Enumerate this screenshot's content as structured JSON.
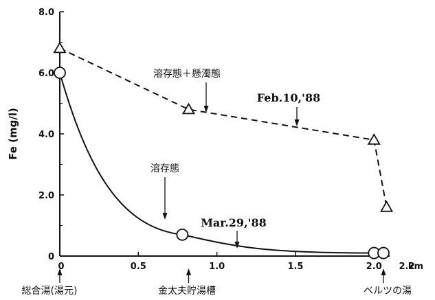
{
  "chart_data": {
    "type": "line",
    "xlabel": "",
    "x_unit": "km",
    "ylabel": "Fe (mg/l)",
    "xlim": [
      0,
      2.2
    ],
    "ylim": [
      0,
      8.0
    ],
    "x_ticks": [
      {
        "value": 0,
        "label": "0"
      },
      {
        "value": 0.5,
        "label": "0.5"
      },
      {
        "value": 1.0,
        "label": "1.0"
      },
      {
        "value": 1.5,
        "label": "1.5"
      },
      {
        "value": 2.0,
        "label": "2.0"
      },
      {
        "value": 2.2,
        "label": "2.2"
      }
    ],
    "y_ticks": [
      {
        "value": 0,
        "label": "0"
      },
      {
        "value": 2.0,
        "label": "2.0"
      },
      {
        "value": 4.0,
        "label": "4.0"
      },
      {
        "value": 6.0,
        "label": "6.0"
      },
      {
        "value": 8.0,
        "label": "8.0"
      }
    ],
    "series": [
      {
        "name": "溶存態＋懸濁態",
        "date": "Feb.10,'88",
        "marker": "triangle",
        "line_style": "dashed",
        "x": [
          0,
          0.82,
          2.0,
          2.08
        ],
        "y": [
          6.8,
          4.8,
          3.8,
          1.6
        ]
      },
      {
        "name": "溶存態",
        "date": "Mar.29,'88",
        "marker": "circle",
        "line_style": "solid",
        "x": [
          0,
          0.78,
          2.0,
          2.06
        ],
        "y": [
          6.0,
          0.7,
          0.1,
          0.1
        ]
      }
    ],
    "locations": [
      {
        "x": 0,
        "label": "総合湯(湯元)"
      },
      {
        "x": 0.82,
        "label": "金太夫貯湯槽"
      },
      {
        "x": 2.06,
        "label": "ベルツの湯"
      }
    ],
    "grid": false,
    "legend": "none"
  }
}
